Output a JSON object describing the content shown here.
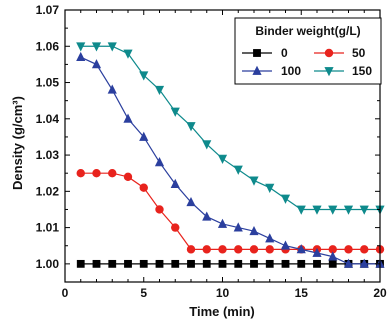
{
  "chart_data": {
    "type": "line",
    "title": "",
    "xlabel": "Time (min)",
    "ylabel": "Density (g/cm³)",
    "xlim": [
      0,
      20
    ],
    "ylim": [
      0.995,
      1.07
    ],
    "xticks": [
      0,
      5,
      10,
      15,
      20
    ],
    "yticks": [
      1.0,
      1.01,
      1.02,
      1.03,
      1.04,
      1.05,
      1.06,
      1.07
    ],
    "ytick_labels": [
      "1.00",
      "1.01",
      "1.02",
      "1.03",
      "1.04",
      "1.05",
      "1.06",
      "1.07"
    ],
    "grid": false,
    "legend": {
      "title": "Binder weight(g/L)",
      "placement": "top-right"
    },
    "x": [
      1,
      2,
      3,
      4,
      5,
      6,
      7,
      8,
      9,
      10,
      11,
      12,
      13,
      14,
      15,
      16,
      17,
      18,
      19,
      20
    ],
    "series": [
      {
        "name": "0",
        "color": "#000000",
        "marker": "square",
        "values": [
          1.0,
          1.0,
          1.0,
          1.0,
          1.0,
          1.0,
          1.0,
          1.0,
          1.0,
          1.0,
          1.0,
          1.0,
          1.0,
          1.0,
          1.0,
          1.0,
          1.0,
          1.0,
          1.0,
          1.0
        ]
      },
      {
        "name": "50",
        "color": "#e8231d",
        "marker": "circle",
        "values": [
          1.025,
          1.025,
          1.025,
          1.024,
          1.021,
          1.015,
          1.01,
          1.004,
          1.004,
          1.004,
          1.004,
          1.004,
          1.004,
          1.004,
          1.004,
          1.004,
          1.004,
          1.004,
          1.004,
          1.004
        ]
      },
      {
        "name": "100",
        "color": "#2b3f9e",
        "marker": "triangle-up",
        "values": [
          1.057,
          1.055,
          1.048,
          1.04,
          1.035,
          1.028,
          1.022,
          1.017,
          1.013,
          1.011,
          1.01,
          1.009,
          1.007,
          1.005,
          1.004,
          1.003,
          1.002,
          1.0,
          1.0,
          1.0
        ]
      },
      {
        "name": "150",
        "color": "#0e8a8c",
        "marker": "triangle-down",
        "values": [
          1.06,
          1.06,
          1.06,
          1.058,
          1.052,
          1.048,
          1.042,
          1.038,
          1.033,
          1.029,
          1.026,
          1.023,
          1.021,
          1.018,
          1.015,
          1.015,
          1.015,
          1.015,
          1.015,
          1.015
        ]
      }
    ]
  }
}
